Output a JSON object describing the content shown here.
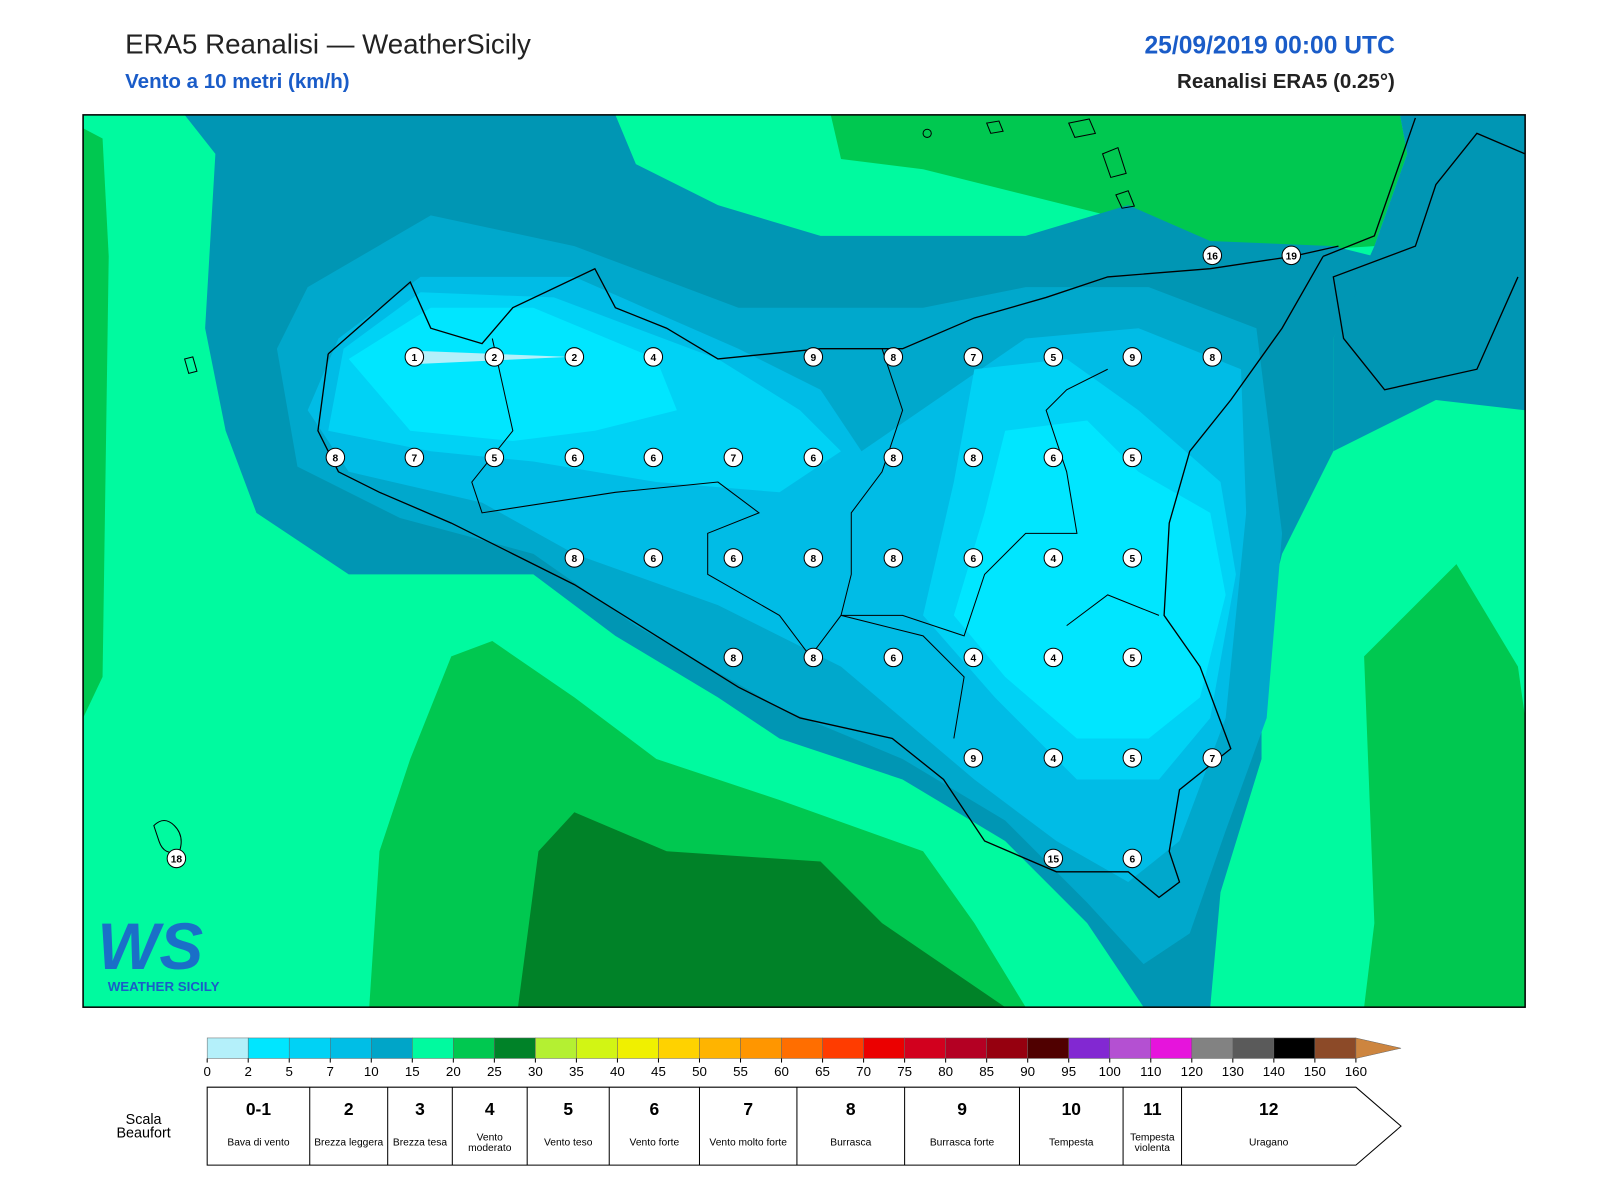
{
  "header": {
    "title": "ERA5 Reanalisi — WeatherSicily",
    "subtitle": "Vento a 10 metri (km/h)",
    "datetime": "25/09/2019 00:00 UTC",
    "source": "Reanalisi ERA5 (0.25°)"
  },
  "map": {
    "station_values": [
      16,
      19,
      1,
      2,
      2,
      4,
      9,
      8,
      7,
      5,
      9,
      8,
      8,
      7,
      5,
      6,
      6,
      7,
      6,
      8,
      8,
      6,
      5,
      8,
      6,
      6,
      8,
      8,
      6,
      4,
      5,
      8,
      8,
      6,
      4,
      4,
      5,
      9,
      4,
      5,
      7,
      18,
      15,
      6
    ]
  },
  "logo": {
    "letters": "WS",
    "name": "WEATHER SICILY"
  },
  "colorbar": {
    "ticks": [
      0,
      2,
      5,
      7,
      10,
      15,
      20,
      25,
      30,
      35,
      40,
      45,
      50,
      55,
      60,
      65,
      70,
      75,
      80,
      85,
      90,
      95,
      100,
      110,
      120,
      130,
      140,
      150,
      160
    ],
    "colors": [
      "#b4f0fa",
      "#00e6ff",
      "#00d2f5",
      "#00bee6",
      "#00a5c8",
      "#00fa9f",
      "#00c850",
      "#008228",
      "#b4f032",
      "#d2f514",
      "#f0f000",
      "#ffd200",
      "#ffb400",
      "#ff9600",
      "#ff6e00",
      "#ff3c00",
      "#eb0000",
      "#d2001e",
      "#b40023",
      "#96000f",
      "#500000",
      "#8228d2",
      "#b450d2",
      "#e614dc",
      "#828282",
      "#5a5a5a",
      "#000000",
      "#8c4a28",
      "#cd853f"
    ]
  },
  "beaufort": {
    "title": "Scala Beaufort",
    "levels": [
      {
        "force": "0-1",
        "label": "Bava di vento"
      },
      {
        "force": "2",
        "label": "Brezza leggera"
      },
      {
        "force": "3",
        "label": "Brezza tesa"
      },
      {
        "force": "4",
        "label": "Vento moderato"
      },
      {
        "force": "5",
        "label": "Vento teso"
      },
      {
        "force": "6",
        "label": "Vento forte"
      },
      {
        "force": "7",
        "label": "Vento molto forte"
      },
      {
        "force": "8",
        "label": "Burrasca"
      },
      {
        "force": "9",
        "label": "Burrasca forte"
      },
      {
        "force": "10",
        "label": "Tempesta"
      },
      {
        "force": "11",
        "label": "Tempesta violenta"
      },
      {
        "force": "12",
        "label": "Uragano"
      }
    ]
  }
}
